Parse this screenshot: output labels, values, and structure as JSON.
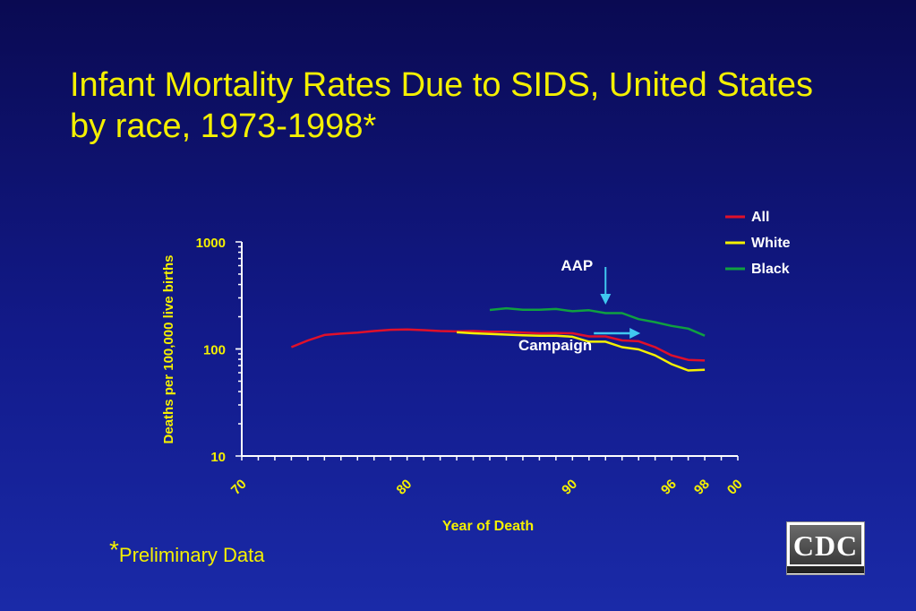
{
  "slide": {
    "title": "Infant Mortality Rates Due to SIDS, United States by race, 1973-1998*",
    "footnote_star": "*",
    "footnote_text": "Preliminary Data",
    "logo_text": "CDC"
  },
  "colors": {
    "background": "#121a8a",
    "text": "#f4f000",
    "axis": "#ffffff",
    "all": "#e0102a",
    "white": "#f4f000",
    "black": "#10a040",
    "annotation_arrow": "#40c8f0"
  },
  "chart_data": {
    "type": "line",
    "xlabel": "Year of Death",
    "ylabel": "Deaths per 100,000 live births",
    "y_scale": "log",
    "ylim": [
      10,
      1000
    ],
    "xlim": [
      1970,
      2000
    ],
    "y_ticks": [
      10,
      100,
      1000
    ],
    "y_tick_labels": [
      "10",
      "100",
      "1000"
    ],
    "x_tick_labels": [
      {
        "value": 1970,
        "label": "70"
      },
      {
        "value": 1980,
        "label": "80"
      },
      {
        "value": 1990,
        "label": "90"
      },
      {
        "value": 1996,
        "label": "96"
      },
      {
        "value": 1998,
        "label": "98"
      },
      {
        "value": 2000,
        "label": "00"
      }
    ],
    "legend_position": "top-right",
    "series": [
      {
        "name": "All",
        "color": "#e0102a",
        "x": [
          1973,
          1974,
          1975,
          1976,
          1977,
          1978,
          1979,
          1980,
          1981,
          1982,
          1983,
          1984,
          1985,
          1986,
          1987,
          1988,
          1989,
          1990,
          1991,
          1992,
          1993,
          1994,
          1995,
          1996,
          1997,
          1998
        ],
        "y": [
          104,
          120,
          135,
          139,
          142,
          147,
          151,
          152,
          150,
          147,
          146,
          147,
          145,
          145,
          142,
          140,
          141,
          140,
          131,
          131,
          120,
          118,
          104,
          87,
          79,
          78
        ]
      },
      {
        "name": "White",
        "color": "#f4f000",
        "x": [
          1983,
          1984,
          1985,
          1986,
          1987,
          1988,
          1989,
          1990,
          1991,
          1992,
          1993,
          1994,
          1995,
          1996,
          1997,
          1998
        ],
        "y": [
          143,
          140,
          138,
          136,
          134,
          133,
          133,
          130,
          117,
          117,
          104,
          99,
          87,
          72,
          63,
          64
        ]
      },
      {
        "name": "Black",
        "color": "#10a040",
        "x": [
          1985,
          1986,
          1987,
          1988,
          1989,
          1990,
          1991,
          1992,
          1993,
          1994,
          1995,
          1996,
          1997,
          1998
        ],
        "y": [
          231,
          240,
          232,
          232,
          236,
          225,
          230,
          216,
          216,
          190,
          178,
          164,
          155,
          133
        ]
      }
    ],
    "annotations": [
      {
        "label": "AAP",
        "x": 1992,
        "arrow": "down"
      },
      {
        "label": "Campaign",
        "x": 1994,
        "arrow": "right"
      }
    ]
  }
}
